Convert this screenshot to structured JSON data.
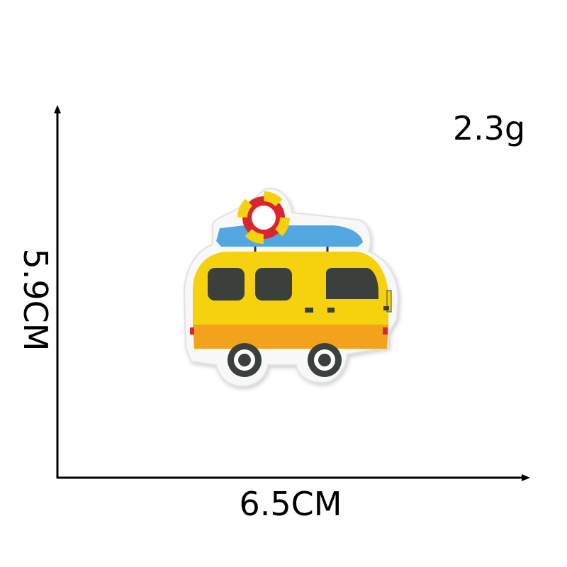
{
  "labels": {
    "weight": "2.3g",
    "width": "6.5CM",
    "height": "5.9CM"
  },
  "colors": {
    "body_yellow": "#f5d20c",
    "lower_orange": "#f2a21f",
    "windows": "#3b3f3d",
    "roof_board": "#52a7e0",
    "ring_red": "#d9282e",
    "ring_yellow": "#f5d20c",
    "patch_border": "#ffffff",
    "axis": "#000000"
  }
}
